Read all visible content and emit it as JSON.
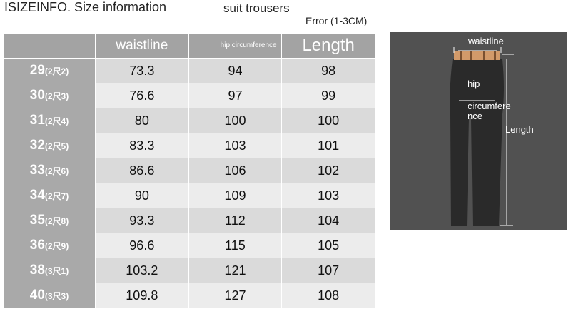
{
  "header": {
    "title": "ISIZEINFO. Size information",
    "subtitle": "suit trousers",
    "note": "Error (1-3CM)"
  },
  "table": {
    "columns": [
      "",
      "waistline",
      "hip circumference",
      "Length"
    ],
    "rows": [
      {
        "size": "29",
        "sub": "(2尺2)",
        "waistline": "73.3",
        "hip": "94",
        "length": "98"
      },
      {
        "size": "30",
        "sub": "(2尺3)",
        "waistline": "76.6",
        "hip": "97",
        "length": "99"
      },
      {
        "size": "31",
        "sub": "(2尺4)",
        "waistline": "80",
        "hip": "100",
        "length": "100"
      },
      {
        "size": "32",
        "sub": "(2尺5)",
        "waistline": "83.3",
        "hip": "103",
        "length": "101"
      },
      {
        "size": "33",
        "sub": "(2尺6)",
        "waistline": "86.6",
        "hip": "106",
        "length": "102"
      },
      {
        "size": "34",
        "sub": "(2尺7)",
        "waistline": "90",
        "hip": "109",
        "length": "103"
      },
      {
        "size": "35",
        "sub": "(2尺8)",
        "waistline": "93.3",
        "hip": "112",
        "length": "104"
      },
      {
        "size": "36",
        "sub": "(2尺9)",
        "waistline": "96.6",
        "hip": "115",
        "length": "105"
      },
      {
        "size": "38",
        "sub": "(3尺1)",
        "waistline": "103.2",
        "hip": "121",
        "length": "107"
      },
      {
        "size": "40",
        "sub": "(3尺3)",
        "waistline": "109.8",
        "hip": "127",
        "length": "108"
      }
    ]
  },
  "diagram": {
    "waistline_label": "waistline",
    "hip_label_1": "hip",
    "hip_label_2": "circumfere",
    "hip_label_3": "nce",
    "length_label": "Length",
    "colors": {
      "background": "#515151",
      "trousers": "#2a2a2a",
      "waistband": "#d29a6a"
    }
  }
}
